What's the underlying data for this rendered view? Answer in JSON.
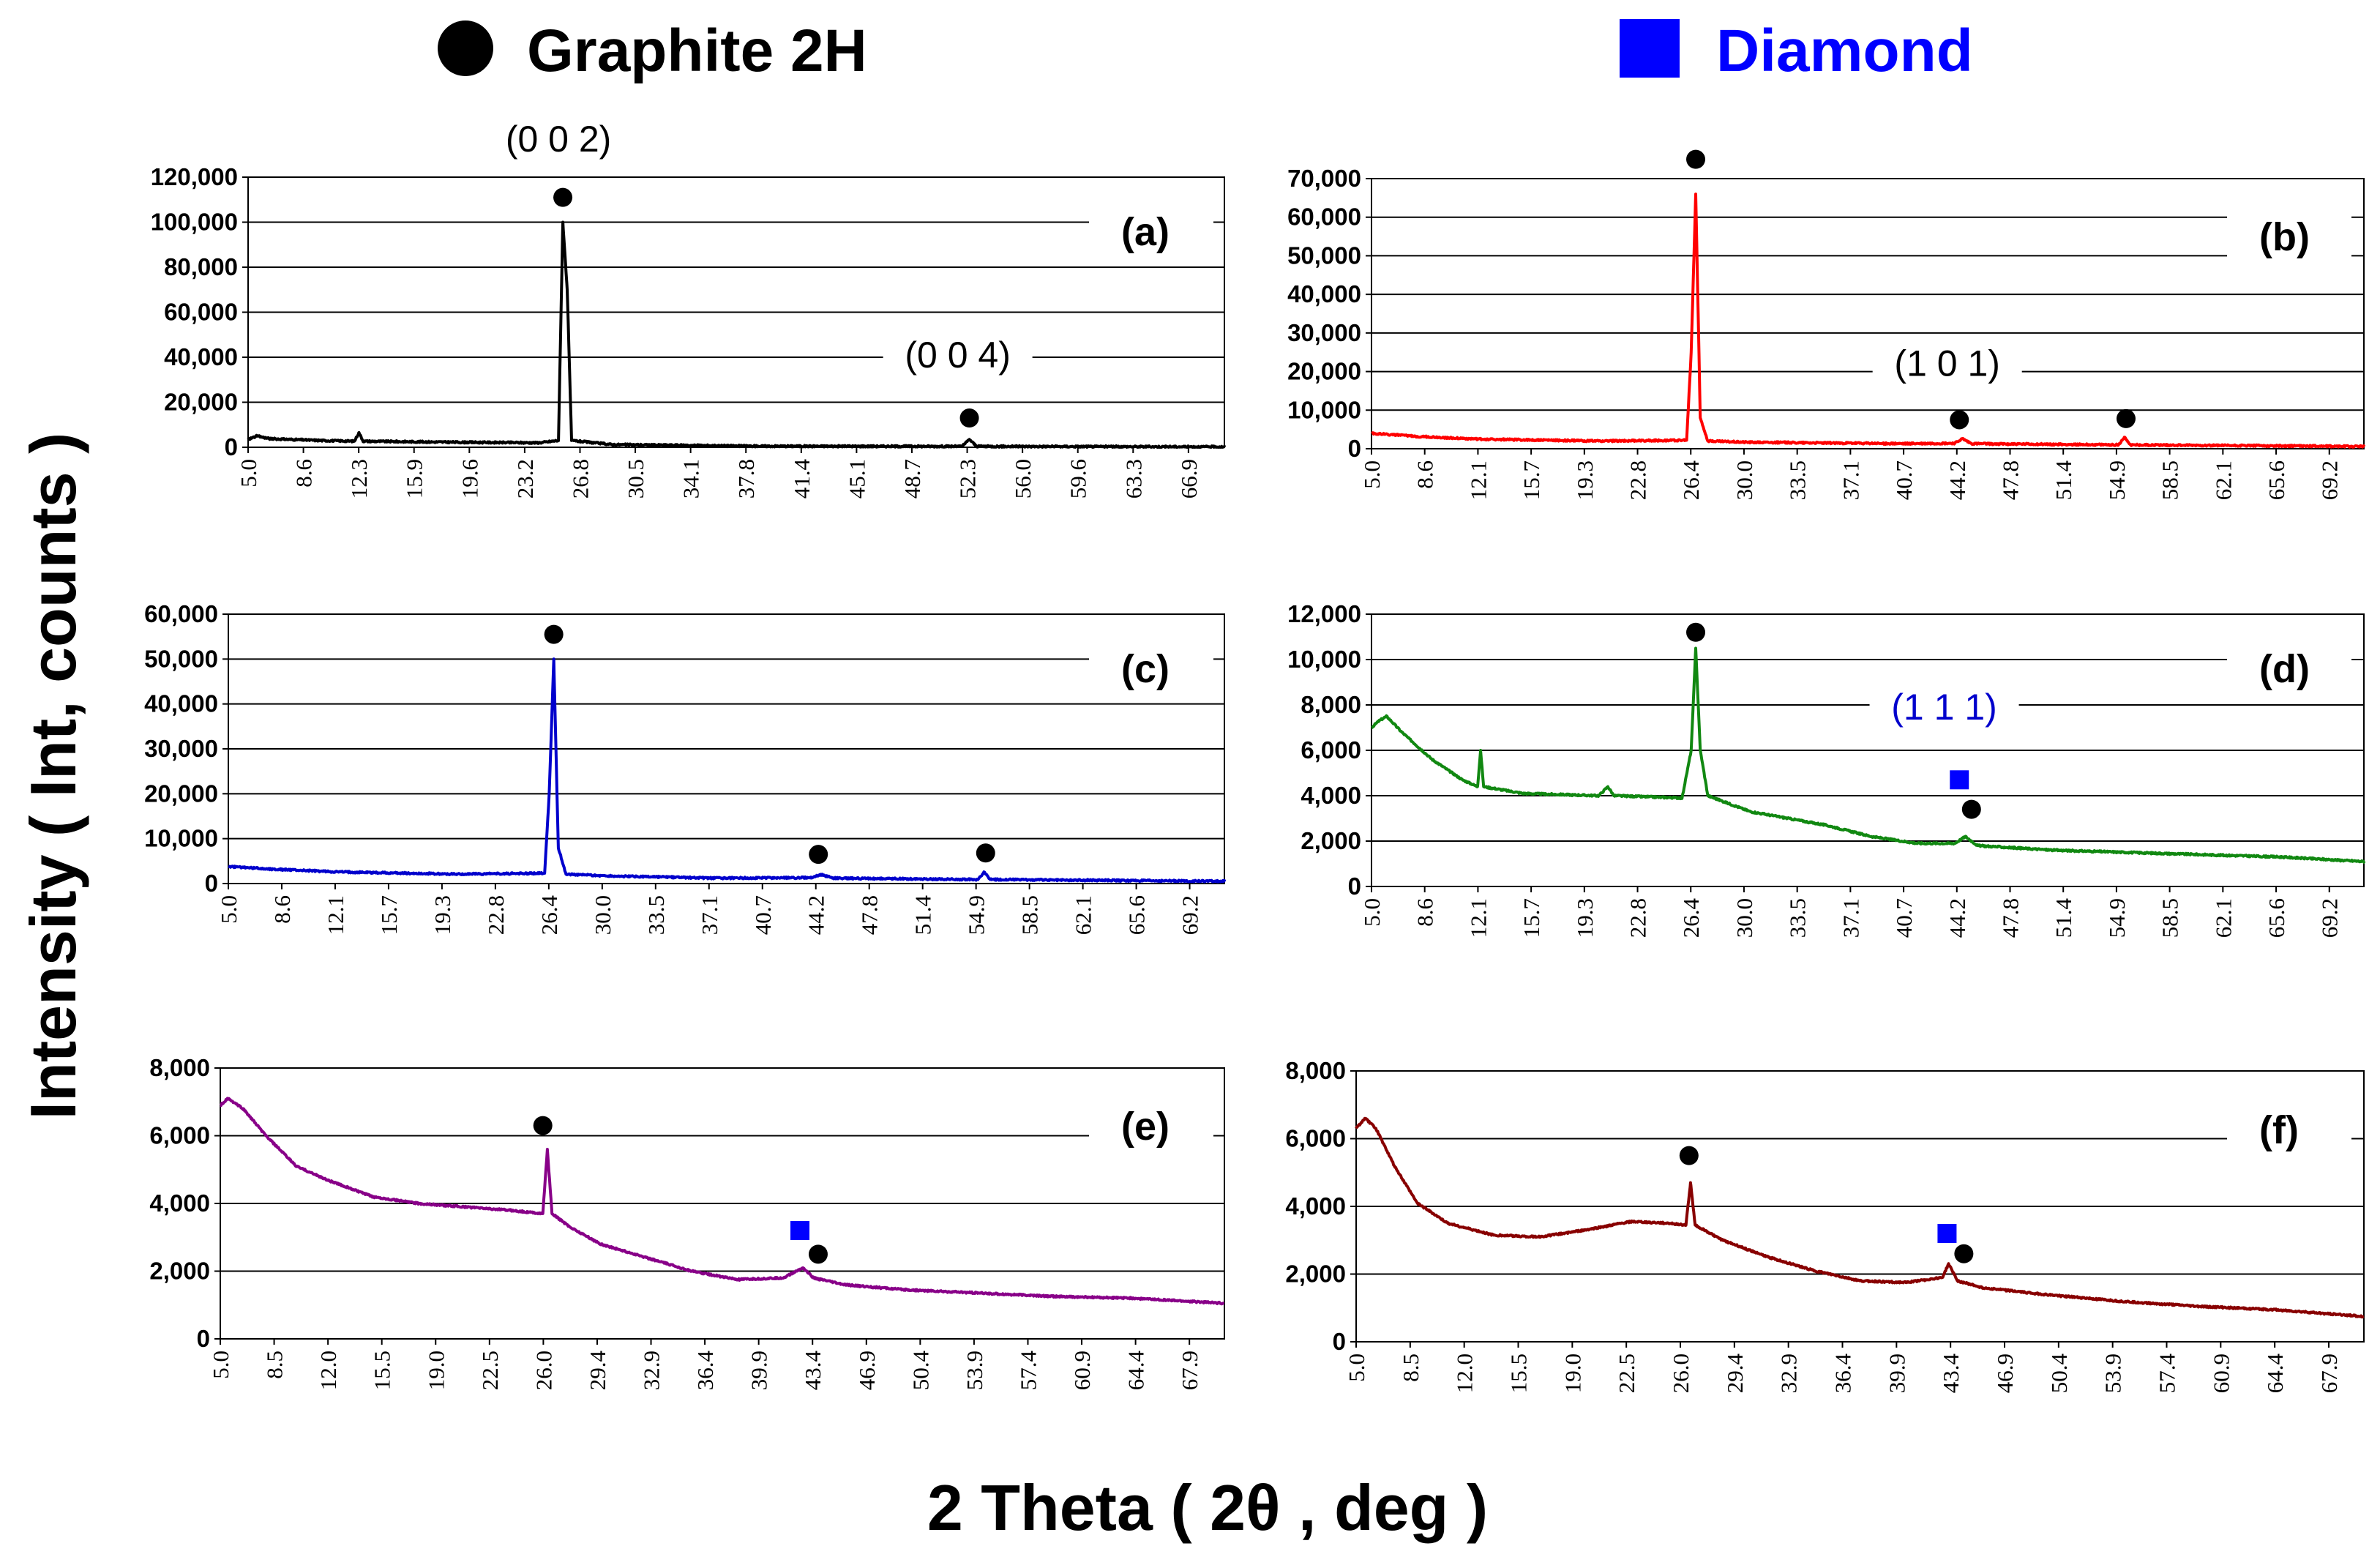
{
  "legend": {
    "graphite": {
      "label": "Graphite 2H",
      "marker": "circle",
      "color": "#000000"
    },
    "diamond": {
      "label": "Diamond",
      "marker": "square",
      "color": "#0000ff"
    }
  },
  "y_axis_title": "Intensity ( Int, counts )",
  "x_axis_title": "2 Theta ( 2θ , deg )",
  "chart_data": [
    {
      "type": "line",
      "panel": "(a)",
      "color": "#000000",
      "xlabel": "2 Theta ( 2θ , deg )",
      "ylabel": "Intensity ( Int, counts )",
      "xlim": [
        5.0,
        72.0
      ],
      "ylim": [
        0,
        120000
      ],
      "y_ticks": [
        0,
        20000,
        40000,
        60000,
        80000,
        100000,
        120000
      ],
      "y_tick_labels": [
        "0",
        "20,000",
        "40,000",
        "60,000",
        "80,000",
        "100,000",
        "120,000"
      ],
      "x_tick_labels": [
        "5.0",
        "8.6",
        "12.3",
        "15.9",
        "19.6",
        "23.2",
        "26.8",
        "30.5",
        "34.1",
        "37.8",
        "41.4",
        "45.1",
        "48.7",
        "52.3",
        "56.0",
        "59.6",
        "63.3",
        "66.9"
      ],
      "grid": true,
      "baseline": [
        [
          5.0,
          3500
        ],
        [
          5.6,
          5000
        ],
        [
          6.5,
          3800
        ],
        [
          10,
          3000
        ],
        [
          12.3,
          2700
        ],
        [
          12.6,
          6500
        ],
        [
          12.9,
          2700
        ],
        [
          20,
          2200
        ],
        [
          25,
          2000
        ],
        [
          26.3,
          3000
        ],
        [
          26.6,
          100000
        ],
        [
          26.9,
          70000
        ],
        [
          27.2,
          3000
        ],
        [
          30,
          1200
        ],
        [
          40,
          500
        ],
        [
          54.0,
          400
        ],
        [
          54.5,
          3500
        ],
        [
          55.0,
          400
        ],
        [
          72.0,
          200
        ]
      ],
      "markers": [
        {
          "type": "graphite",
          "x": 26.6,
          "y": 111000
        },
        {
          "type": "graphite",
          "x": 54.5,
          "y": 13000
        }
      ],
      "annotations": [
        {
          "text": "(0 0 2)",
          "x": 26.3,
          "y": 136000,
          "color": "#000000"
        },
        {
          "text": "(0 0 4)",
          "x": 53.7,
          "y": 40000,
          "color": "#000000"
        }
      ]
    },
    {
      "type": "line",
      "panel": "(b)",
      "color": "#ff0000",
      "xlim": [
        5.0,
        70.5
      ],
      "ylim": [
        0,
        70000
      ],
      "y_ticks": [
        0,
        10000,
        20000,
        30000,
        40000,
        50000,
        60000,
        70000
      ],
      "y_tick_labels": [
        "0",
        "10,000",
        "20,000",
        "30,000",
        "40,000",
        "50,000",
        "60,000",
        "70,000"
      ],
      "x_tick_labels": [
        "5.0",
        "8.6",
        "12.1",
        "15.7",
        "19.3",
        "22.8",
        "26.4",
        "30.0",
        "33.5",
        "37.1",
        "40.7",
        "44.2",
        "47.8",
        "51.4",
        "54.9",
        "58.5",
        "62.1",
        "65.6",
        "69.2"
      ],
      "grid": true,
      "baseline": [
        [
          5.0,
          4000
        ],
        [
          8,
          3200
        ],
        [
          12,
          2500
        ],
        [
          20,
          2000
        ],
        [
          25.8,
          2200
        ],
        [
          26.1,
          25000
        ],
        [
          26.4,
          66000
        ],
        [
          26.7,
          8000
        ],
        [
          27.2,
          2000
        ],
        [
          30,
          1700
        ],
        [
          40,
          1300
        ],
        [
          43.5,
          1400
        ],
        [
          44.0,
          2600
        ],
        [
          44.6,
          1300
        ],
        [
          54.3,
          1000
        ],
        [
          54.7,
          3000
        ],
        [
          55.1,
          1000
        ],
        [
          70.5,
          600
        ]
      ],
      "markers": [
        {
          "type": "graphite",
          "x": 26.4,
          "y": 75000
        },
        {
          "type": "graphite",
          "x": 43.8,
          "y": 7500
        },
        {
          "type": "graphite",
          "x": 54.8,
          "y": 7800
        }
      ],
      "annotations": [
        {
          "text": "(1 0 1)",
          "x": 43.0,
          "y": 21500,
          "color": "#000000"
        }
      ]
    },
    {
      "type": "line",
      "panel": "(c)",
      "color": "#0000cc",
      "xlim": [
        5.0,
        70.5
      ],
      "ylim": [
        0,
        60000
      ],
      "y_ticks": [
        0,
        10000,
        20000,
        30000,
        40000,
        50000,
        60000
      ],
      "y_tick_labels": [
        "0",
        "10,000",
        "20,000",
        "30,000",
        "40,000",
        "50,000",
        "60,000"
      ],
      "x_tick_labels": [
        "5.0",
        "8.6",
        "12.1",
        "15.7",
        "19.3",
        "22.8",
        "26.4",
        "30.0",
        "33.5",
        "37.1",
        "40.7",
        "44.2",
        "47.8",
        "51.4",
        "54.9",
        "58.5",
        "62.1",
        "65.6",
        "69.2"
      ],
      "grid": true,
      "baseline": [
        [
          5.0,
          3800
        ],
        [
          8,
          3200
        ],
        [
          12,
          2600
        ],
        [
          20,
          2100
        ],
        [
          25.8,
          2300
        ],
        [
          26.1,
          20000
        ],
        [
          26.4,
          50000
        ],
        [
          26.7,
          8000
        ],
        [
          27.2,
          2100
        ],
        [
          30,
          1700
        ],
        [
          37,
          1200
        ],
        [
          43.3,
          1300
        ],
        [
          44.0,
          2000
        ],
        [
          44.8,
          1200
        ],
        [
          54.3,
          900
        ],
        [
          54.7,
          2500
        ],
        [
          55.1,
          900
        ],
        [
          70.5,
          500
        ]
      ],
      "markers": [
        {
          "type": "graphite",
          "x": 26.4,
          "y": 55500
        },
        {
          "type": "graphite",
          "x": 43.8,
          "y": 6500
        },
        {
          "type": "graphite",
          "x": 54.8,
          "y": 6800
        }
      ],
      "annotations": []
    },
    {
      "type": "line",
      "panel": "(d)",
      "color": "#118811",
      "xlim": [
        5.0,
        70.5
      ],
      "ylim": [
        0,
        12000
      ],
      "y_ticks": [
        0,
        2000,
        4000,
        6000,
        8000,
        10000,
        12000
      ],
      "y_tick_labels": [
        "0",
        "2,000",
        "4,000",
        "6,000",
        "8,000",
        "10,000",
        "12,000"
      ],
      "x_tick_labels": [
        "5.0",
        "8.6",
        "12.1",
        "15.7",
        "19.3",
        "22.8",
        "26.4",
        "30.0",
        "33.5",
        "37.1",
        "40.7",
        "44.2",
        "47.8",
        "51.4",
        "54.9",
        "58.5",
        "62.1",
        "65.6",
        "69.2"
      ],
      "grid": true,
      "baseline": [
        [
          5.0,
          7000
        ],
        [
          5.5,
          7300
        ],
        [
          6.0,
          7500
        ],
        [
          7,
          6800
        ],
        [
          9,
          5600
        ],
        [
          11,
          4700
        ],
        [
          12.0,
          4400
        ],
        [
          12.2,
          6000
        ],
        [
          12.4,
          4400
        ],
        [
          15,
          4100
        ],
        [
          20,
          4000
        ],
        [
          20.6,
          4400
        ],
        [
          21,
          4000
        ],
        [
          25.5,
          3900
        ],
        [
          26.1,
          6000
        ],
        [
          26.4,
          10500
        ],
        [
          26.7,
          6000
        ],
        [
          27.2,
          4000
        ],
        [
          30,
          3300
        ],
        [
          35,
          2700
        ],
        [
          38,
          2200
        ],
        [
          41,
          1900
        ],
        [
          43.5,
          1900
        ],
        [
          44.2,
          2200
        ],
        [
          45,
          1800
        ],
        [
          50,
          1600
        ],
        [
          55,
          1500
        ],
        [
          60,
          1400
        ],
        [
          65,
          1300
        ],
        [
          70.5,
          1100
        ]
      ],
      "markers": [
        {
          "type": "graphite",
          "x": 26.4,
          "y": 11200
        },
        {
          "type": "diamond",
          "x": 43.8,
          "y": 4700
        },
        {
          "type": "graphite",
          "x": 44.6,
          "y": 3400
        }
      ],
      "annotations": [
        {
          "text": "(1 1 1)",
          "x": 42.8,
          "y": 7800,
          "color": "#0000cc"
        }
      ]
    },
    {
      "type": "line",
      "panel": "(e)",
      "color": "#880088",
      "xlim": [
        5.0,
        71.0
      ],
      "ylim": [
        0,
        8000
      ],
      "y_ticks": [
        0,
        2000,
        4000,
        6000,
        8000
      ],
      "y_tick_labels": [
        "0",
        "2,000",
        "4,000",
        "6,000",
        "8,000"
      ],
      "x_tick_labels": [
        "5.0",
        "8.5",
        "12.0",
        "15.5",
        "19.0",
        "22.5",
        "26.0",
        "29.4",
        "32.9",
        "36.4",
        "39.9",
        "43.4",
        "46.9",
        "50.4",
        "53.9",
        "57.4",
        "60.9",
        "64.4",
        "67.9"
      ],
      "grid": true,
      "baseline": [
        [
          5.0,
          6900
        ],
        [
          5.5,
          7100
        ],
        [
          6.5,
          6800
        ],
        [
          8,
          6000
        ],
        [
          10,
          5100
        ],
        [
          12,
          4700
        ],
        [
          15,
          4200
        ],
        [
          18,
          4000
        ],
        [
          21,
          3900
        ],
        [
          24,
          3800
        ],
        [
          26.2,
          3700
        ],
        [
          26.5,
          5600
        ],
        [
          26.8,
          3700
        ],
        [
          28,
          3300
        ],
        [
          30,
          2800
        ],
        [
          33,
          2400
        ],
        [
          36,
          2000
        ],
        [
          39,
          1750
        ],
        [
          42,
          1800
        ],
        [
          43.3,
          2100
        ],
        [
          44.0,
          1800
        ],
        [
          46,
          1600
        ],
        [
          50,
          1450
        ],
        [
          55,
          1350
        ],
        [
          60,
          1250
        ],
        [
          65,
          1200
        ],
        [
          71,
          1050
        ]
      ],
      "markers": [
        {
          "type": "graphite",
          "x": 26.2,
          "y": 6300
        },
        {
          "type": "diamond",
          "x": 43.1,
          "y": 3200
        },
        {
          "type": "graphite",
          "x": 44.3,
          "y": 2500
        }
      ],
      "annotations": []
    },
    {
      "type": "line",
      "panel": "(f)",
      "color": "#880000",
      "xlim": [
        5.0,
        71.0
      ],
      "ylim": [
        0,
        8000
      ],
      "y_ticks": [
        0,
        2000,
        4000,
        6000,
        8000
      ],
      "y_tick_labels": [
        "0",
        "2,000",
        "4,000",
        "6,000",
        "8,000"
      ],
      "x_tick_labels": [
        "5.0",
        "8.5",
        "12.0",
        "15.5",
        "19.0",
        "22.5",
        "26.0",
        "29.4",
        "32.9",
        "36.4",
        "39.9",
        "43.4",
        "46.9",
        "50.4",
        "53.9",
        "57.4",
        "60.9",
        "64.4",
        "67.9"
      ],
      "grid": true,
      "baseline": [
        [
          5.0,
          6300
        ],
        [
          5.6,
          6600
        ],
        [
          6.3,
          6300
        ],
        [
          7.5,
          5200
        ],
        [
          9,
          4100
        ],
        [
          11,
          3500
        ],
        [
          14,
          3150
        ],
        [
          17,
          3100
        ],
        [
          20,
          3300
        ],
        [
          23,
          3550
        ],
        [
          25.5,
          3500
        ],
        [
          26.6,
          3450
        ],
        [
          26.9,
          4700
        ],
        [
          27.2,
          3450
        ],
        [
          29,
          3000
        ],
        [
          32,
          2500
        ],
        [
          35,
          2100
        ],
        [
          38,
          1800
        ],
        [
          41,
          1750
        ],
        [
          43.4,
          1900
        ],
        [
          43.8,
          2300
        ],
        [
          44.4,
          1800
        ],
        [
          46,
          1600
        ],
        [
          50,
          1400
        ],
        [
          55,
          1200
        ],
        [
          60,
          1050
        ],
        [
          65,
          950
        ],
        [
          71,
          750
        ]
      ],
      "markers": [
        {
          "type": "graphite",
          "x": 26.8,
          "y": 5500
        },
        {
          "type": "diamond",
          "x": 43.7,
          "y": 3200
        },
        {
          "type": "graphite",
          "x": 44.8,
          "y": 2600
        }
      ],
      "annotations": []
    }
  ]
}
